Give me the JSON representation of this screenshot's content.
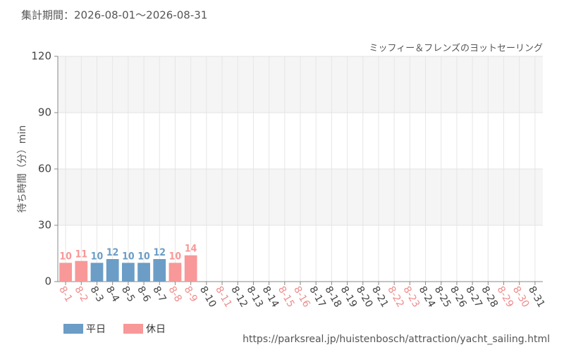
{
  "chart_data": {
    "type": "bar",
    "title": "集計期間：2026-08-01～2026-08-31",
    "subtitle": "ミッフィー＆フレンズのヨットセーリング",
    "y_label": "待ち時間（分）min",
    "source": "https://parksreal.jp/huistenbosch/attraction/yacht_sailing.html",
    "categories": [
      "8-1",
      "8-2",
      "8-3",
      "8-4",
      "8-5",
      "8-6",
      "8-7",
      "8-8",
      "8-9",
      "8-10",
      "8-11",
      "8-12",
      "8-13",
      "8-14",
      "8-15",
      "8-16",
      "8-17",
      "8-18",
      "8-19",
      "8-20",
      "8-21",
      "8-22",
      "8-23",
      "8-24",
      "8-25",
      "8-26",
      "8-27",
      "8-28",
      "8-29",
      "8-30",
      "8-31"
    ],
    "category_colors": [
      "#f08c8c",
      "#f08c8c",
      "#444444",
      "#444444",
      "#444444",
      "#444444",
      "#444444",
      "#f08c8c",
      "#f08c8c",
      "#444444",
      "#f08c8c",
      "#444444",
      "#444444",
      "#444444",
      "#f08c8c",
      "#f08c8c",
      "#444444",
      "#444444",
      "#444444",
      "#444444",
      "#444444",
      "#f08c8c",
      "#f08c8c",
      "#444444",
      "#444444",
      "#444444",
      "#444444",
      "#444444",
      "#f08c8c",
      "#f08c8c",
      "#444444"
    ],
    "series": [
      {
        "name": "平日",
        "color": "#6b9dc6",
        "values": [
          null,
          null,
          10,
          12,
          10,
          10,
          12,
          null,
          null,
          null,
          null,
          null,
          null,
          null,
          null,
          null,
          null,
          null,
          null,
          null,
          null,
          null,
          null,
          null,
          null,
          null,
          null,
          null,
          null,
          null,
          null
        ]
      },
      {
        "name": "休日",
        "color": "#f89898",
        "values": [
          10,
          11,
          null,
          null,
          null,
          null,
          null,
          10,
          14,
          null,
          null,
          null,
          null,
          null,
          null,
          null,
          null,
          null,
          null,
          null,
          null,
          null,
          null,
          null,
          null,
          null,
          null,
          null,
          null,
          null,
          null
        ]
      }
    ],
    "ylim": [
      0,
      120
    ],
    "yticks": [
      0,
      30,
      60,
      90,
      120
    ],
    "grid": true
  }
}
